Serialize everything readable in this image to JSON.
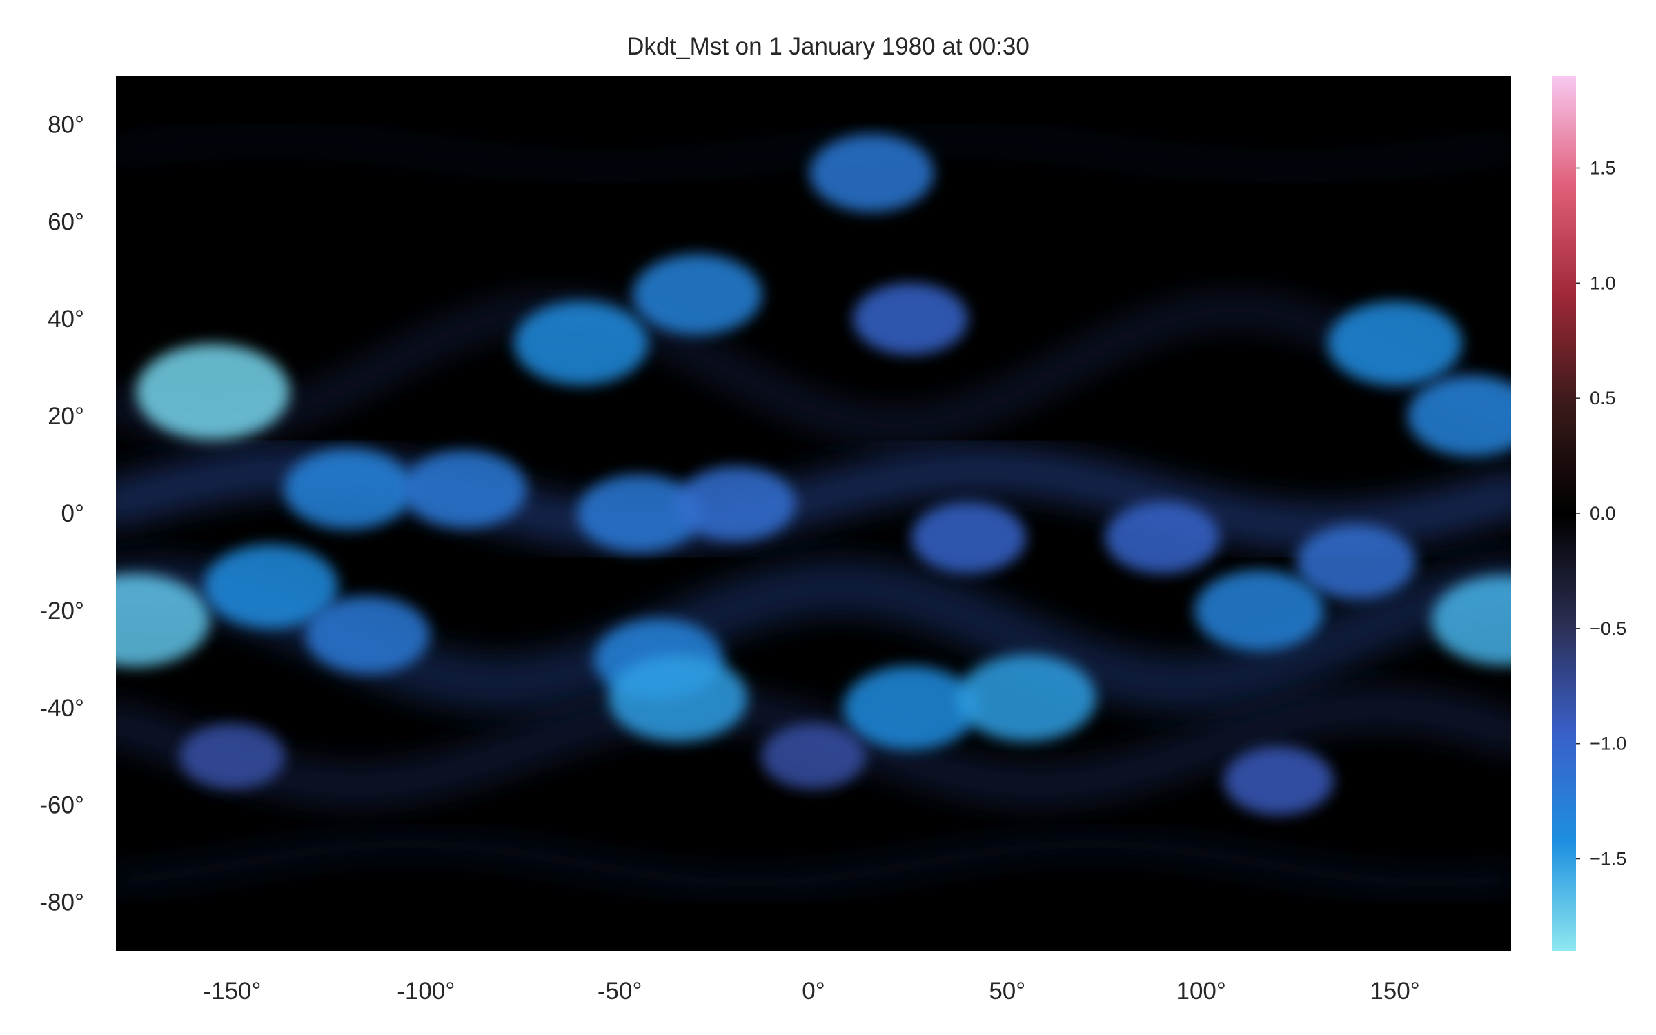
{
  "chart_data": {
    "type": "heatmap",
    "title": "Dkdt_Mst on 1 January 1980 at 00:30",
    "xlabel": "",
    "ylabel": "",
    "x_ticks": [
      -150,
      -100,
      -50,
      0,
      50,
      100,
      150
    ],
    "x_tick_labels": [
      "-150°",
      "-100°",
      "-50°",
      "0°",
      "50°",
      "100°",
      "150°"
    ],
    "xlim": [
      -180,
      180
    ],
    "y_ticks": [
      80,
      60,
      40,
      20,
      0,
      -20,
      -40,
      -60,
      -80
    ],
    "y_tick_labels": [
      "80°",
      "60°",
      "40°",
      "20°",
      "0°",
      "-20°",
      "-40°",
      "-60°",
      "-80°"
    ],
    "ylim": [
      -90,
      90
    ],
    "grid": false,
    "colorbar": {
      "range": [
        -1.9,
        1.9
      ],
      "ticks": [
        1.5,
        1.0,
        0.5,
        0.0,
        -0.5,
        -1.0,
        -1.5
      ],
      "tick_labels": [
        "1.5",
        "1.0",
        "0.5",
        "0.0",
        "−0.5",
        "−1.0",
        "−1.5"
      ],
      "colors": [
        "#8ee8f0",
        "#1e8fe0",
        "#3a5fc8",
        "#2b2e52",
        "#000000",
        "#3a1a1a",
        "#a02838",
        "#e0607a",
        "#f8c8f0"
      ]
    },
    "features": [
      {
        "lon": -120,
        "lat": 5,
        "value": -1.3
      },
      {
        "lon": -90,
        "lat": 5,
        "value": -1.2
      },
      {
        "lon": -45,
        "lat": 0,
        "value": -1.2
      },
      {
        "lon": -20,
        "lat": 2,
        "value": -1.1
      },
      {
        "lon": 40,
        "lat": -5,
        "value": -1.0
      },
      {
        "lon": 90,
        "lat": -5,
        "value": -1.0
      },
      {
        "lon": 140,
        "lat": -10,
        "value": -1.1
      },
      {
        "lon": -155,
        "lat": 25,
        "value": -1.8
      },
      {
        "lon": -60,
        "lat": 35,
        "value": -1.4
      },
      {
        "lon": -30,
        "lat": 45,
        "value": -1.3
      },
      {
        "lon": 15,
        "lat": 70,
        "value": -1.2
      },
      {
        "lon": 25,
        "lat": 40,
        "value": -1.0
      },
      {
        "lon": 150,
        "lat": 35,
        "value": -1.4
      },
      {
        "lon": 170,
        "lat": 20,
        "value": -1.3
      },
      {
        "lon": -175,
        "lat": -22,
        "value": -1.7
      },
      {
        "lon": 178,
        "lat": -22,
        "value": -1.6
      },
      {
        "lon": -140,
        "lat": -15,
        "value": -1.4
      },
      {
        "lon": -115,
        "lat": -25,
        "value": -1.2
      },
      {
        "lon": -40,
        "lat": -30,
        "value": -1.3
      },
      {
        "lon": -35,
        "lat": -38,
        "value": -1.5
      },
      {
        "lon": 25,
        "lat": -40,
        "value": -1.4
      },
      {
        "lon": 55,
        "lat": -38,
        "value": -1.5
      },
      {
        "lon": 115,
        "lat": -20,
        "value": -1.3
      },
      {
        "lon": 120,
        "lat": -55,
        "value": -0.9
      },
      {
        "lon": -150,
        "lat": -50,
        "value": -0.8
      },
      {
        "lon": 0,
        "lat": -50,
        "value": -0.8
      }
    ]
  }
}
